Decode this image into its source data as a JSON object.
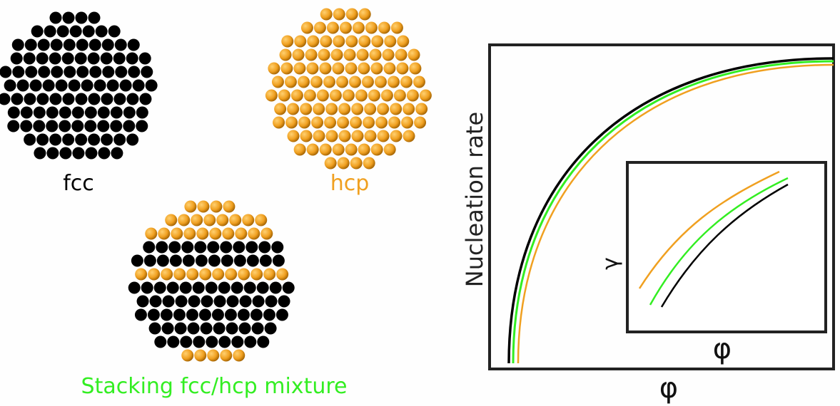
{
  "labels": {
    "fcc": "fcc",
    "hcp": "hcp",
    "mixture": "Stacking fcc/hcp mixture"
  },
  "colors": {
    "fcc": "#000000",
    "hcp": "#f0a020",
    "mixture": "#33ee22"
  },
  "mixture_layers": [
    "hcp",
    "hcp",
    "hcp",
    "fcc",
    "fcc",
    "hcp",
    "fcc",
    "fcc",
    "fcc",
    "fcc",
    "fcc",
    "hcp"
  ],
  "chart_data": [
    {
      "type": "line",
      "ylabel": "Nucleation rate",
      "xlabel": "φ",
      "series": [
        {
          "color": "#000000"
        },
        {
          "color": "#33ee22"
        },
        {
          "color": "#f0a020"
        }
      ]
    },
    {
      "type": "line",
      "ylabel": "γ",
      "xlabel": "φ",
      "series": [
        {
          "color": "#f0a020"
        },
        {
          "color": "#33ee22"
        },
        {
          "color": "#000000"
        }
      ]
    }
  ]
}
